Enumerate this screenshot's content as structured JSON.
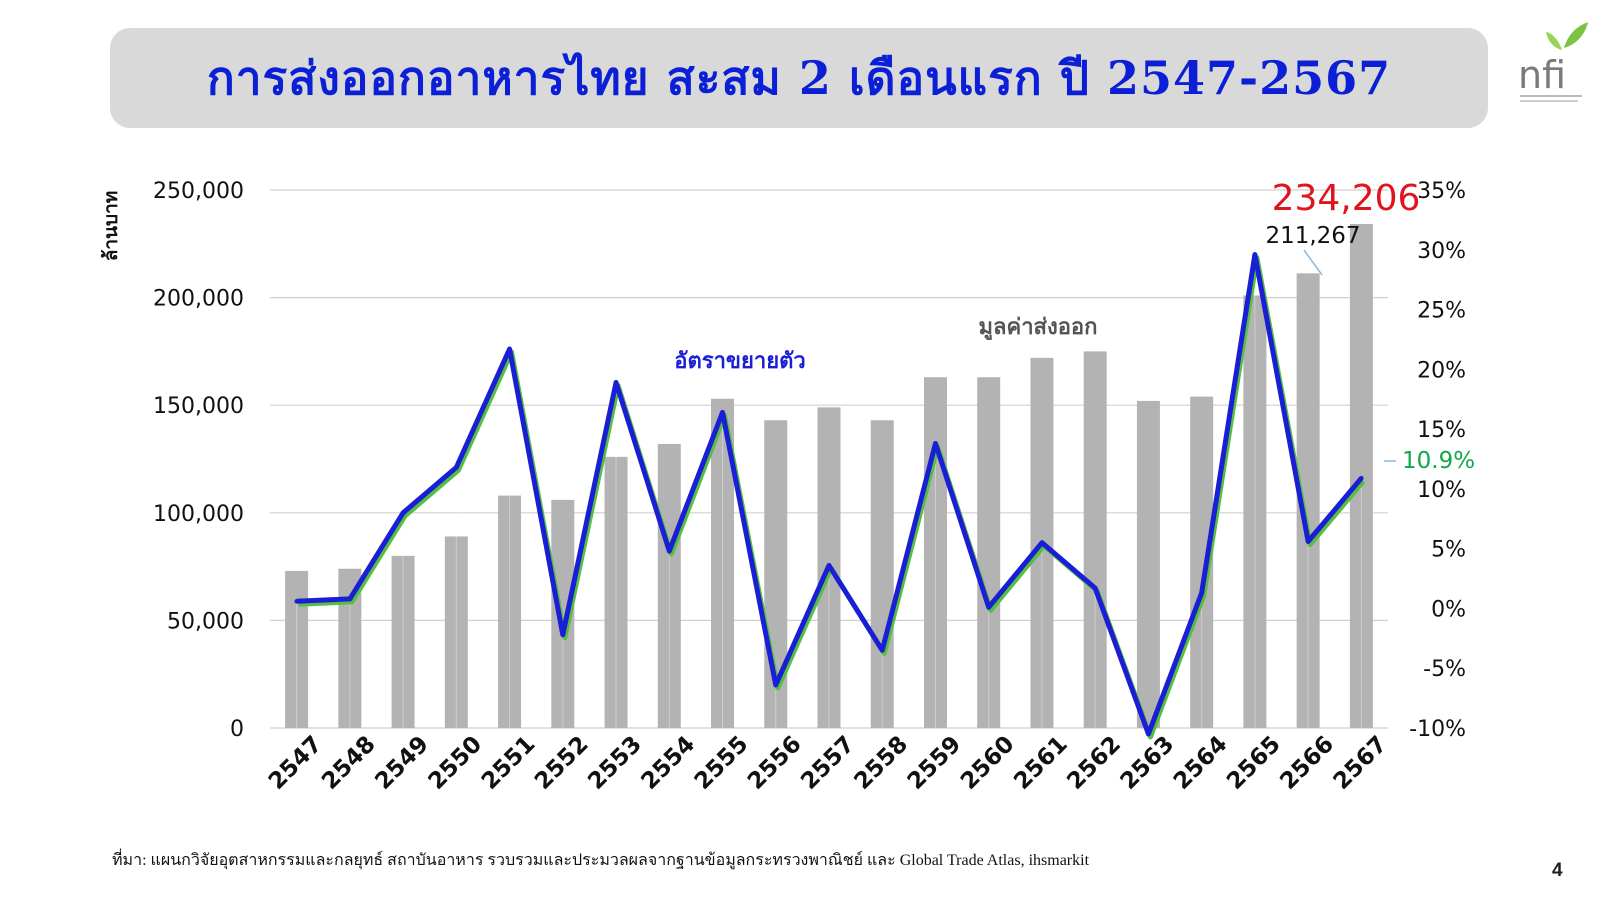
{
  "header": {
    "title": "การส่งออกอาหารไทย สะสม 2 เดือนแรก ปี 2547-2567",
    "logo_text": "nfi"
  },
  "footer": {
    "source": "ที่มา: แผนกวิจัยอุตสาหกรรมและกลยุทธ์  สถาบันอาหาร รวบรวมและประมวลผลจากฐานข้อมูลกระทรวงพาณิชย์ และ Global Trade Atlas, ihsmarkit",
    "page_number": "4"
  },
  "chart_data": {
    "type": "bar",
    "ylabel": "ล้านบาท",
    "categories": [
      "2547",
      "2548",
      "2549",
      "2550",
      "2551",
      "2552",
      "2553",
      "2554",
      "2555",
      "2556",
      "2557",
      "2558",
      "2559",
      "2560",
      "2561",
      "2562",
      "2563",
      "2564",
      "2565",
      "2566",
      "2567"
    ],
    "ylim": [
      0,
      250000
    ],
    "y_ticks": [
      "0",
      "50,000",
      "100,000",
      "150,000",
      "200,000",
      "250,000"
    ],
    "y2lim": [
      -10,
      35
    ],
    "y2_ticks": [
      "-10%",
      "-5%",
      "0%",
      "5%",
      "10%",
      "15%",
      "20%",
      "25%",
      "30%",
      "35%"
    ],
    "grid": true,
    "series": [
      {
        "name": "มูลค่าส่งออก",
        "axis": "left",
        "type": "bar",
        "color": "#b3b3b3",
        "values": [
          73000,
          74000,
          80000,
          89000,
          108000,
          106000,
          126000,
          132000,
          153000,
          143000,
          149000,
          143000,
          163000,
          163000,
          172000,
          175000,
          152000,
          154000,
          201000,
          211267,
          234206
        ]
      },
      {
        "name": "อัตราขยายตัว",
        "axis": "right",
        "type": "line",
        "color": "#1a1fd6",
        "values": [
          0.6,
          0.8,
          8.0,
          11.8,
          21.7,
          -2.2,
          18.9,
          4.8,
          16.4,
          -6.4,
          3.6,
          -3.5,
          13.8,
          0.1,
          5.5,
          1.7,
          -10.5,
          1.3,
          29.6,
          5.6,
          10.9
        ]
      }
    ],
    "annotations": {
      "bar_2567": "234,206",
      "bar_2566": "211,267",
      "growth_2567": "10.9%",
      "value_series_label": "มูลค่าส่งออก",
      "growth_series_label": "อัตราขยายตัว"
    },
    "colors": {
      "bar": "#b3b3b3",
      "line": "#1a1fd6",
      "line_shadow": "#55c040",
      "highlight_value": "#e0141e",
      "highlight_growth": "#10a84a"
    }
  }
}
